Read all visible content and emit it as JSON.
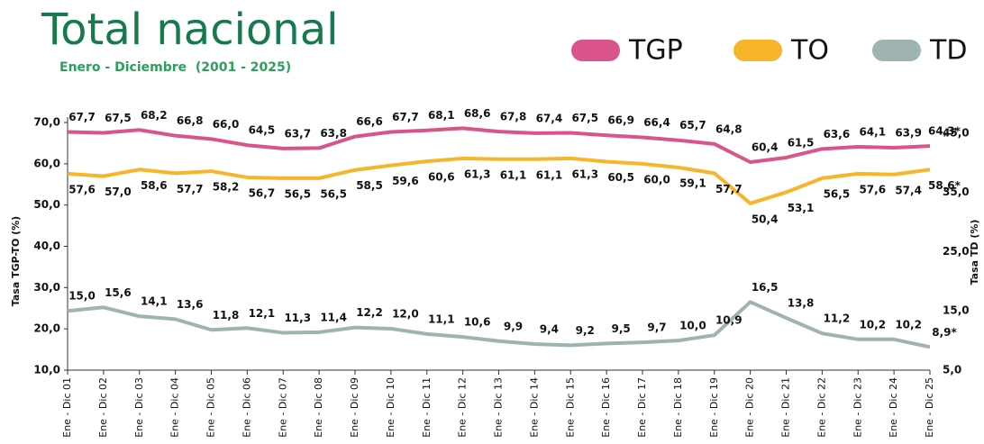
{
  "chart_data": {
    "type": "line",
    "title": "Total nacional",
    "subtitle": "Enero - Diciembre  (2001 - 2025)",
    "ylabel": "Tasa TGP-TO (%)",
    "y2label": "Tasa TD (%)",
    "categories": [
      "Ene - Dic 01",
      "Ene - Dic 02",
      "Ene - Dic 03",
      "Ene - Dic 04",
      "Ene - Dic 05",
      "Ene - Dic 06",
      "Ene - Dic 07",
      "Ene - Dic 08",
      "Ene - Dic 09",
      "Ene - Dic 10",
      "Ene - Dic 11",
      "Ene - Dic 12",
      "Ene - Dic 13",
      "Ene - Dic 14",
      "Ene - Dic 15",
      "Ene - Dic 16",
      "Ene - Dic 17",
      "Ene - Dic 18",
      "Ene - Dic 19",
      "Ene - Dic 20",
      "Ene - Dic 21",
      "Ene - Dic 22",
      "Ene - Dic 23",
      "Ene - Dic 24",
      "Ene - Dic 25"
    ],
    "series": [
      {
        "name": "TGP",
        "color": "#d9548a",
        "values": [
          67.7,
          67.5,
          68.2,
          66.8,
          66.0,
          64.5,
          63.7,
          63.8,
          66.6,
          67.7,
          68.1,
          68.6,
          67.8,
          67.4,
          67.5,
          66.9,
          66.4,
          65.7,
          64.8,
          60.4,
          61.5,
          63.6,
          64.1,
          63.9,
          64.3
        ],
        "value_labels": [
          "67,7",
          "67,5",
          "68,2",
          "66,8",
          "66,0",
          "64,5",
          "63,7",
          "63,8",
          "66,6",
          "67,7",
          "68,1",
          "68,6",
          "67,8",
          "67,4",
          "67,5",
          "66,9",
          "66,4",
          "65,7",
          "64,8",
          "60,4",
          "61,5",
          "63,6",
          "64,1",
          "63,9",
          "64,3*"
        ]
      },
      {
        "name": "TO",
        "color": "#f7b52c",
        "values": [
          57.6,
          57.0,
          58.6,
          57.7,
          58.2,
          56.7,
          56.5,
          56.5,
          58.5,
          59.6,
          60.6,
          61.3,
          61.1,
          61.1,
          61.3,
          60.5,
          60.0,
          59.1,
          57.7,
          50.4,
          53.1,
          56.5,
          57.6,
          57.4,
          58.6
        ],
        "value_labels": [
          "57,6",
          "57,0",
          "58,6",
          "57,7",
          "58,2",
          "56,7",
          "56,5",
          "56,5",
          "58,5",
          "59,6",
          "60,6",
          "61,3",
          "61,1",
          "61,1",
          "61,3",
          "60,5",
          "60,0",
          "59,1",
          "57,7",
          "50,4",
          "53,1",
          "56,5",
          "57,6",
          "57,4",
          "58,6*"
        ]
      },
      {
        "name": "TD",
        "color": "#9fb3b0",
        "axis": "y2",
        "values": [
          15.0,
          15.6,
          14.1,
          13.6,
          11.8,
          12.1,
          11.3,
          11.4,
          12.2,
          12.0,
          11.1,
          10.6,
          9.9,
          9.4,
          9.2,
          9.5,
          9.7,
          10.0,
          10.9,
          16.5,
          13.8,
          11.2,
          10.2,
          10.2,
          8.9
        ],
        "value_labels": [
          "15,0",
          "15,6",
          "14,1",
          "13,6",
          "11,8",
          "12,1",
          "11,3",
          "11,4",
          "12,2",
          "12,0",
          "11,1",
          "10,6",
          "9,9",
          "9,4",
          "9,2",
          "9,5",
          "9,7",
          "10,0",
          "10,9",
          "16,5",
          "13,8",
          "11,2",
          "10,2",
          "10,2",
          "8,9*"
        ]
      }
    ],
    "ylim": [
      10,
      70
    ],
    "yticks": [
      {
        "value": 10,
        "label": "10,0"
      },
      {
        "value": 20,
        "label": "20,0"
      },
      {
        "value": 30,
        "label": "30,0"
      },
      {
        "value": 40,
        "label": "40,0"
      },
      {
        "value": 50,
        "label": "50,0"
      },
      {
        "value": 60,
        "label": "60,0"
      },
      {
        "value": 70,
        "label": "70,0"
      }
    ],
    "y2lim": [
      5,
      46.8
    ],
    "y2ticks": [
      {
        "value": 5,
        "label": "5,0"
      },
      {
        "value": 15,
        "label": "15,0"
      },
      {
        "value": 25,
        "label": "25,0"
      },
      {
        "value": 35,
        "label": "35,0"
      },
      {
        "value": 45,
        "label": "45,0"
      }
    ],
    "legend": "top-right"
  }
}
